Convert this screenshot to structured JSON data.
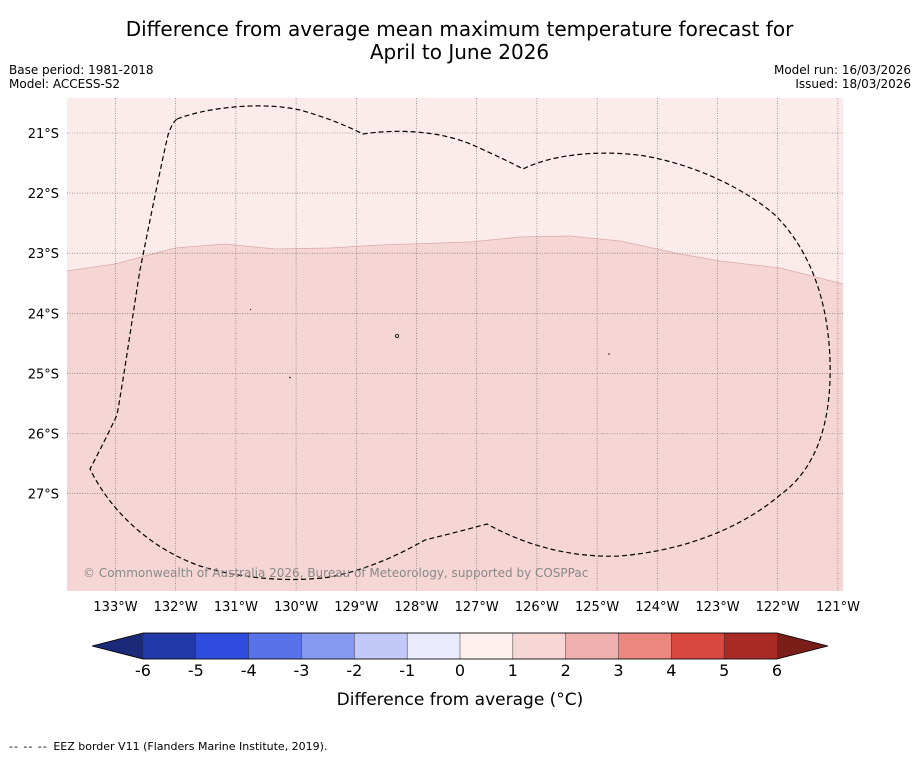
{
  "title": {
    "line1": "Difference from average mean maximum temperature forecast for",
    "line2": "April to June 2026"
  },
  "meta": {
    "base_period": "Base period: 1981-2018",
    "model": "Model: ACCESS-S2",
    "model_run": "Model run: 16/03/2026",
    "issued": "Issued: 18/03/2026"
  },
  "map": {
    "lat_labels": [
      "21°S",
      "22°S",
      "23°S",
      "24°S",
      "25°S",
      "26°S",
      "27°S"
    ],
    "lon_labels": [
      "133°W",
      "132°W",
      "131°W",
      "130°W",
      "129°W",
      "128°W",
      "127°W",
      "126°W",
      "125°W",
      "124°W",
      "123°W",
      "122°W",
      "121°W"
    ],
    "copyright": "© Commonwealth of Australia 2026, Bureau of Meteorology, supported by COSPPac",
    "regions": [
      {
        "name": "north",
        "category": "0 to 1",
        "color": "#fbebea"
      },
      {
        "name": "south",
        "category": "1 to 2",
        "color": "#f6d6d5"
      }
    ]
  },
  "colorbar": {
    "ticks": [
      "-6",
      "-5",
      "-4",
      "-3",
      "-2",
      "-1",
      "0",
      "1",
      "2",
      "3",
      "4",
      "5",
      "6"
    ],
    "colors": [
      "#2338a9",
      "#2f4ee0",
      "#5a72e9",
      "#8698ef",
      "#c2c8f8",
      "#e9ebfc",
      "#fdefed",
      "#f6d7d6",
      "#efafac",
      "#e98780",
      "#d9473e",
      "#a92a25"
    ],
    "under_color": "#1a2a78",
    "over_color": "#7a1e1a",
    "label": "Difference from average (°C)"
  },
  "footer": {
    "legend_symbol": "-- -- --",
    "legend_text": "EEZ border V11 (Flanders Marine Institute, 2019)."
  }
}
